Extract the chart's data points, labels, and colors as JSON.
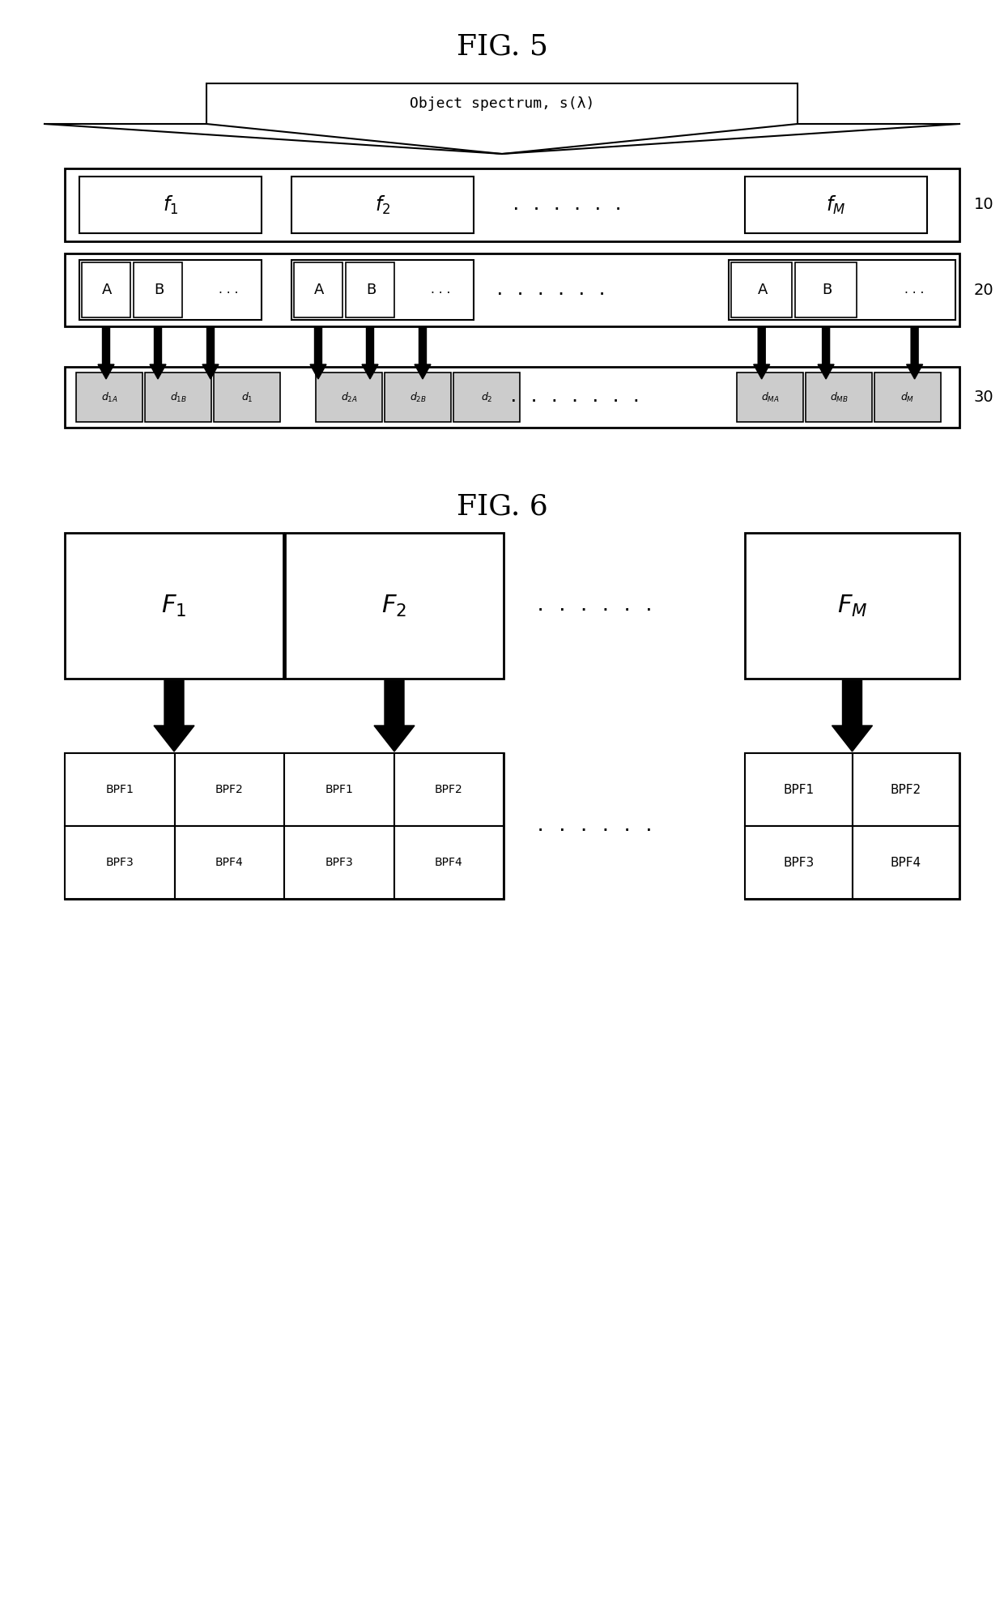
{
  "fig_width": 12.4,
  "fig_height": 19.98,
  "dpi": 100,
  "bg_color": "#ffffff",
  "fig5_title": "FIG. 5",
  "fig6_title": "FIG. 6",
  "spectrum_label": "Object spectrum, s(λ)",
  "ref10": "10",
  "ref20": "20",
  "ref30": "30",
  "bpf_labels": [
    "BPF1",
    "BPF2",
    "BPF3",
    "BPF4"
  ],
  "gray_fill": "#cccccc",
  "dots_h": ". . . . . .",
  "dots_h2": ". . . . . . ."
}
